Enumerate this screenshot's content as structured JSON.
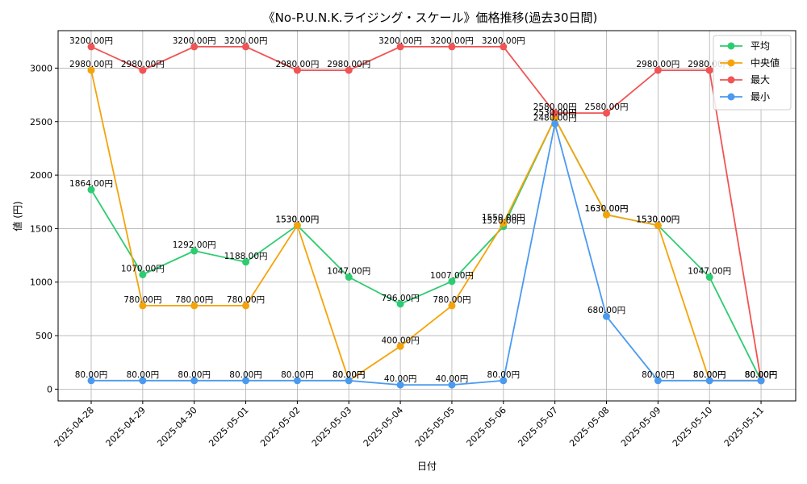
{
  "chart_data": {
    "type": "line",
    "title": "《No-P.U.N.K.ライジング・スケール》価格推移(過去30日間)",
    "xlabel": "日付",
    "ylabel": "値 (円)",
    "ylim": [
      -110,
      3350
    ],
    "yticks": [
      0,
      500,
      1000,
      1500,
      2000,
      2500,
      3000
    ],
    "grid": true,
    "legend_position": "top-right",
    "value_suffix": "円",
    "x": [
      "2025-04-28",
      "2025-04-29",
      "2025-04-30",
      "2025-05-01",
      "2025-05-02",
      "2025-05-03",
      "2025-05-04",
      "2025-05-05",
      "2025-05-06",
      "2025-05-07",
      "2025-05-08",
      "2025-05-09",
      "2025-05-10",
      "2025-05-11"
    ],
    "series": [
      {
        "name": "平均",
        "color": "#2ecc71",
        "values": [
          1864,
          1070,
          1292,
          1188,
          1530,
          1047,
          796,
          1007,
          1520,
          2530,
          1630,
          1530,
          1047,
          80
        ]
      },
      {
        "name": "中央値",
        "color": "#f5a30a",
        "values": [
          2980,
          780,
          780,
          780,
          1530,
          80,
          400,
          780,
          1550,
          2530,
          1630,
          1530,
          80,
          80
        ]
      },
      {
        "name": "最大",
        "color": "#f05454",
        "values": [
          3200,
          2980,
          3200,
          3200,
          2980,
          2980,
          3200,
          3200,
          3200,
          2580,
          2580,
          2980,
          2980,
          80
        ]
      },
      {
        "name": "最小",
        "color": "#4a9af0",
        "values": [
          80,
          80,
          80,
          80,
          80,
          80,
          40,
          40,
          80,
          2480,
          680,
          80,
          80,
          80
        ]
      }
    ]
  }
}
